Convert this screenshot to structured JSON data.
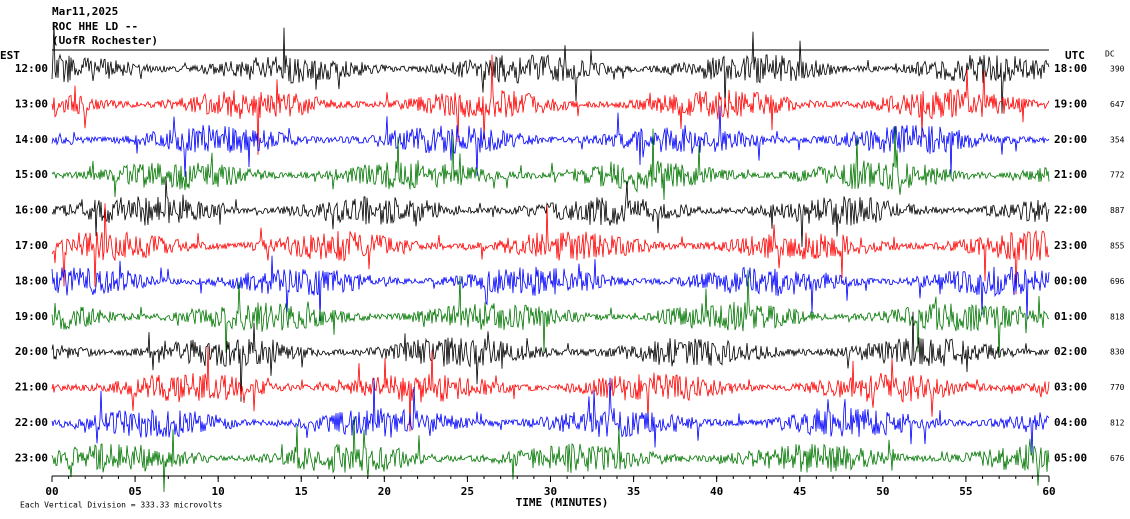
{
  "header": {
    "date": "Mar11,2025",
    "station": "ROC HHE LD --",
    "location": "(UofR Rochester)"
  },
  "left_label": "EST",
  "right_label": "UTC",
  "dc_label": "DC",
  "rows": [
    {
      "est": "12:00",
      "utc": "18:00",
      "dc": "390"
    },
    {
      "est": "13:00",
      "utc": "19:00",
      "dc": "647"
    },
    {
      "est": "14:00",
      "utc": "20:00",
      "dc": "354"
    },
    {
      "est": "15:00",
      "utc": "21:00",
      "dc": "772"
    },
    {
      "est": "16:00",
      "utc": "22:00",
      "dc": "887"
    },
    {
      "est": "17:00",
      "utc": "23:00",
      "dc": "855"
    },
    {
      "est": "18:00",
      "utc": "00:00",
      "dc": "696"
    },
    {
      "est": "19:00",
      "utc": "01:00",
      "dc": "818"
    },
    {
      "est": "20:00",
      "utc": "02:00",
      "dc": "830"
    },
    {
      "est": "21:00",
      "utc": "03:00",
      "dc": "770"
    },
    {
      "est": "22:00",
      "utc": "04:00",
      "dc": "812"
    },
    {
      "est": "23:00",
      "utc": "05:00",
      "dc": "676"
    }
  ],
  "x_axis": {
    "ticks": [
      "00",
      "05",
      "10",
      "15",
      "20",
      "25",
      "30",
      "35",
      "40",
      "45",
      "50",
      "55",
      "60"
    ],
    "title": "TIME (MINUTES)"
  },
  "footer": "Each Vertical Division =  333.33 microvolts"
}
